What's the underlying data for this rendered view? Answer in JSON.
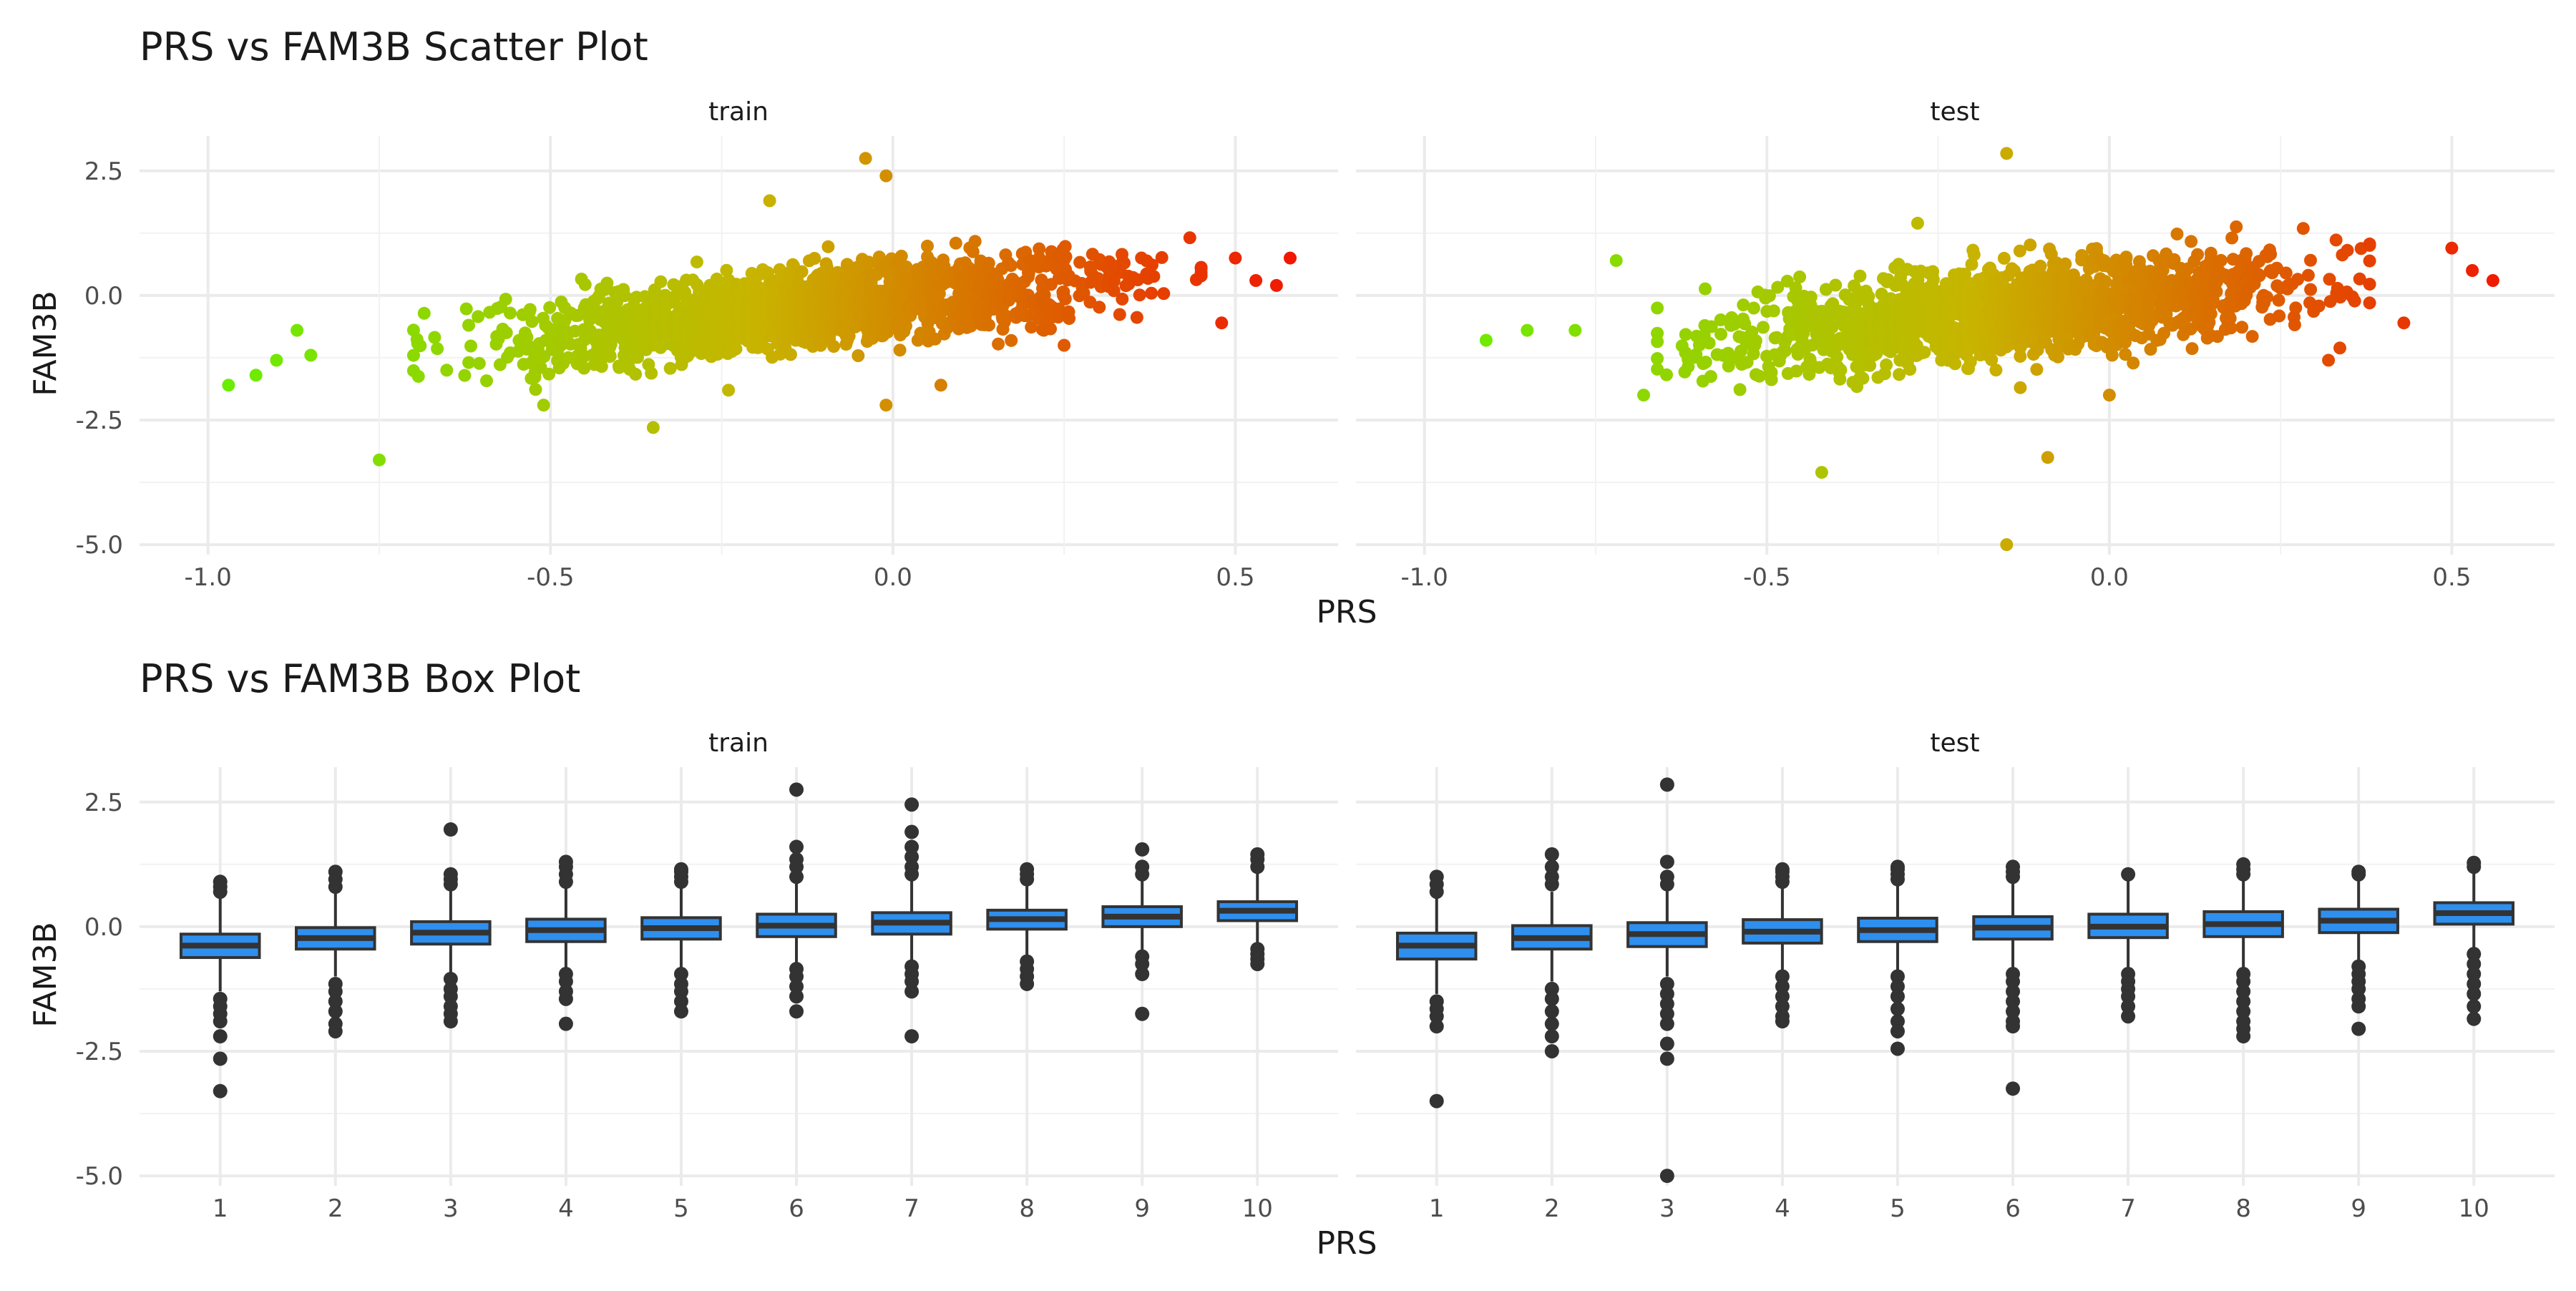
{
  "chart_data": [
    {
      "type": "scatter",
      "title": "PRS vs FAM3B Scatter Plot",
      "xlabel": "PRS",
      "ylabel": "FAM3B",
      "facets": [
        "train",
        "test"
      ],
      "xlim": [
        -1.1,
        0.65
      ],
      "ylim": [
        -5.2,
        3.2
      ],
      "x_ticks": [
        "-1.0",
        "-0.5",
        "0.0",
        "0.5"
      ],
      "x_tick_values": [
        -1.0,
        -0.5,
        0.0,
        0.5
      ],
      "y_ticks": [
        "2.5",
        "0.0",
        "-2.5",
        "-5.0"
      ],
      "y_tick_values": [
        2.5,
        0.0,
        -2.5,
        -5.0
      ],
      "color_gradient": {
        "low": "#6aed00",
        "mid": "#c8b400",
        "high": "#f01800",
        "domain": [
          -0.97,
          0.58
        ]
      },
      "trend": {
        "slope": 1.4,
        "intercept": -0.1
      },
      "ranges": [
        {
          "facet": "train",
          "x_min": -0.7,
          "x_max": 0.45,
          "spread": 0.42
        },
        {
          "facet": "test",
          "x_min": -0.66,
          "x_max": 0.38,
          "spread": 0.48
        }
      ],
      "extreme_points": [
        {
          "facet": "train",
          "points": [
            [
              -0.97,
              -1.8
            ],
            [
              -0.93,
              -1.6
            ],
            [
              -0.9,
              -1.3
            ],
            [
              -0.87,
              -0.7
            ],
            [
              -0.85,
              -1.2
            ],
            [
              -0.75,
              -3.3
            ],
            [
              -0.51,
              -2.2
            ],
            [
              -0.35,
              -2.65
            ],
            [
              -0.24,
              -1.9
            ],
            [
              -0.18,
              1.9
            ],
            [
              -0.04,
              2.75
            ],
            [
              -0.01,
              2.4
            ],
            [
              -0.01,
              -2.2
            ],
            [
              0.07,
              -1.8
            ],
            [
              0.25,
              -1.0
            ],
            [
              0.48,
              -0.55
            ],
            [
              0.5,
              0.75
            ],
            [
              0.53,
              0.3
            ],
            [
              0.56,
              0.2
            ],
            [
              0.58,
              0.75
            ]
          ]
        },
        {
          "facet": "test",
          "points": [
            [
              -0.91,
              -0.9
            ],
            [
              -0.85,
              -0.7
            ],
            [
              -0.78,
              -0.7
            ],
            [
              -0.72,
              0.7
            ],
            [
              -0.68,
              -2.0
            ],
            [
              -0.42,
              -3.55
            ],
            [
              -0.28,
              1.45
            ],
            [
              -0.15,
              2.85
            ],
            [
              -0.15,
              -5.0
            ],
            [
              -0.13,
              -1.85
            ],
            [
              -0.09,
              -3.25
            ],
            [
              0.0,
              -2.0
            ],
            [
              0.32,
              -1.3
            ],
            [
              0.43,
              -0.55
            ],
            [
              0.5,
              0.95
            ],
            [
              0.53,
              0.5
            ],
            [
              0.56,
              0.3
            ]
          ]
        }
      ]
    },
    {
      "type": "box",
      "title": "PRS vs FAM3B Box Plot",
      "xlabel": "PRS",
      "ylabel": "FAM3B",
      "facets": [
        "train",
        "test"
      ],
      "categories": [
        "1",
        "2",
        "3",
        "4",
        "5",
        "6",
        "7",
        "8",
        "9",
        "10"
      ],
      "ylim": [
        -5.2,
        3.2
      ],
      "y_ticks": [
        "2.5",
        "0.0",
        "-2.5",
        "-5.0"
      ],
      "y_tick_values": [
        2.5,
        0.0,
        -2.5,
        -5.0
      ],
      "fill_color": "#2e8fee",
      "series": [
        {
          "name": "train",
          "boxes": [
            {
              "q1": -0.62,
              "median": -0.38,
              "q3": -0.15,
              "low": -1.3,
              "high": 0.6,
              "outliers": [
                0.7,
                0.8,
                0.9,
                -1.45,
                -1.6,
                -1.75,
                -1.9,
                -2.2,
                -2.65,
                -3.3
              ]
            },
            {
              "q1": -0.45,
              "median": -0.23,
              "q3": -0.02,
              "low": -1.0,
              "high": 0.7,
              "outliers": [
                0.8,
                0.95,
                1.1,
                -1.15,
                -1.3,
                -1.5,
                -1.7,
                -1.95,
                -2.1
              ]
            },
            {
              "q1": -0.35,
              "median": -0.12,
              "q3": 0.1,
              "low": -0.95,
              "high": 0.75,
              "outliers": [
                0.85,
                0.95,
                1.05,
                1.95,
                -1.05,
                -1.25,
                -1.4,
                -1.6,
                -1.75,
                -1.9
              ]
            },
            {
              "q1": -0.3,
              "median": -0.07,
              "q3": 0.15,
              "low": -0.85,
              "high": 0.8,
              "outliers": [
                0.9,
                1.05,
                1.2,
                1.3,
                -0.95,
                -1.1,
                -1.3,
                -1.45,
                -1.95
              ]
            },
            {
              "q1": -0.25,
              "median": -0.03,
              "q3": 0.18,
              "low": -0.85,
              "high": 0.8,
              "outliers": [
                0.9,
                1.0,
                1.1,
                1.15,
                -0.95,
                -1.15,
                -1.3,
                -1.5,
                -1.7
              ]
            },
            {
              "q1": -0.2,
              "median": 0.02,
              "q3": 0.25,
              "low": -0.75,
              "high": 0.9,
              "outliers": [
                1.0,
                1.2,
                1.35,
                1.6,
                2.75,
                -0.85,
                -1.0,
                -1.2,
                -1.4,
                -1.7
              ]
            },
            {
              "q1": -0.15,
              "median": 0.08,
              "q3": 0.28,
              "low": -0.7,
              "high": 0.95,
              "outliers": [
                1.05,
                1.2,
                1.4,
                1.6,
                1.9,
                2.45,
                -0.8,
                -0.95,
                -1.1,
                -1.3,
                -2.2
              ]
            },
            {
              "q1": -0.05,
              "median": 0.15,
              "q3": 0.33,
              "low": -0.6,
              "high": 0.9,
              "outliers": [
                0.95,
                1.05,
                1.15,
                -0.7,
                -0.85,
                -1.0,
                -1.15
              ]
            },
            {
              "q1": 0.0,
              "median": 0.2,
              "q3": 0.4,
              "low": -0.5,
              "high": 0.95,
              "outliers": [
                1.05,
                1.2,
                1.55,
                -0.6,
                -0.75,
                -0.95,
                -1.75
              ]
            },
            {
              "q1": 0.12,
              "median": 0.32,
              "q3": 0.5,
              "low": -0.35,
              "high": 1.1,
              "outliers": [
                1.2,
                1.35,
                1.45,
                -0.45,
                -0.55,
                -0.65,
                -0.75
              ]
            }
          ]
        },
        {
          "name": "test",
          "boxes": [
            {
              "q1": -0.65,
              "median": -0.38,
              "q3": -0.13,
              "low": -1.35,
              "high": 0.6,
              "outliers": [
                0.7,
                0.85,
                1.0,
                -1.5,
                -1.65,
                -1.8,
                -2.0,
                -3.5
              ]
            },
            {
              "q1": -0.45,
              "median": -0.23,
              "q3": 0.02,
              "low": -1.1,
              "high": 0.7,
              "outliers": [
                0.85,
                1.0,
                1.2,
                1.45,
                -1.25,
                -1.45,
                -1.7,
                -1.95,
                -2.2,
                -2.5
              ]
            },
            {
              "q1": -0.4,
              "median": -0.15,
              "q3": 0.08,
              "low": -1.0,
              "high": 0.75,
              "outliers": [
                0.85,
                1.0,
                1.3,
                2.85,
                -1.15,
                -1.35,
                -1.55,
                -1.75,
                -1.95,
                -2.35,
                -2.65,
                -5.0
              ]
            },
            {
              "q1": -0.33,
              "median": -0.1,
              "q3": 0.14,
              "low": -0.9,
              "high": 0.8,
              "outliers": [
                0.9,
                1.0,
                1.1,
                1.15,
                -1.0,
                -1.2,
                -1.4,
                -1.6,
                -1.8,
                -1.9
              ]
            },
            {
              "q1": -0.3,
              "median": -0.07,
              "q3": 0.17,
              "low": -0.9,
              "high": 0.85,
              "outliers": [
                0.95,
                1.05,
                1.15,
                1.2,
                -1.0,
                -1.2,
                -1.4,
                -1.65,
                -1.9,
                -2.1,
                -2.45
              ]
            },
            {
              "q1": -0.25,
              "median": -0.02,
              "q3": 0.2,
              "low": -0.85,
              "high": 0.9,
              "outliers": [
                1.0,
                1.1,
                1.2,
                -0.95,
                -1.1,
                -1.3,
                -1.5,
                -1.7,
                -1.9,
                -2.0,
                -3.25
              ]
            },
            {
              "q1": -0.22,
              "median": 0.0,
              "q3": 0.25,
              "low": -0.85,
              "high": 0.95,
              "outliers": [
                1.05,
                -0.95,
                -1.1,
                -1.25,
                -1.4,
                -1.6,
                -1.8
              ]
            },
            {
              "q1": -0.2,
              "median": 0.05,
              "q3": 0.3,
              "low": -0.85,
              "high": 0.95,
              "outliers": [
                1.05,
                1.15,
                1.25,
                -0.95,
                -1.1,
                -1.3,
                -1.5,
                -1.7,
                -1.9,
                -2.05,
                -2.2
              ]
            },
            {
              "q1": -0.12,
              "median": 0.12,
              "q3": 0.35,
              "low": -0.7,
              "high": 1.0,
              "outliers": [
                1.05,
                1.1,
                -0.8,
                -0.95,
                -1.1,
                -1.25,
                -1.45,
                -1.6,
                -2.05
              ]
            },
            {
              "q1": 0.05,
              "median": 0.27,
              "q3": 0.48,
              "low": -0.45,
              "high": 1.1,
              "outliers": [
                1.2,
                1.28,
                -0.55,
                -0.75,
                -0.95,
                -1.15,
                -1.35,
                -1.6,
                -1.85
              ]
            }
          ]
        }
      ]
    }
  ]
}
